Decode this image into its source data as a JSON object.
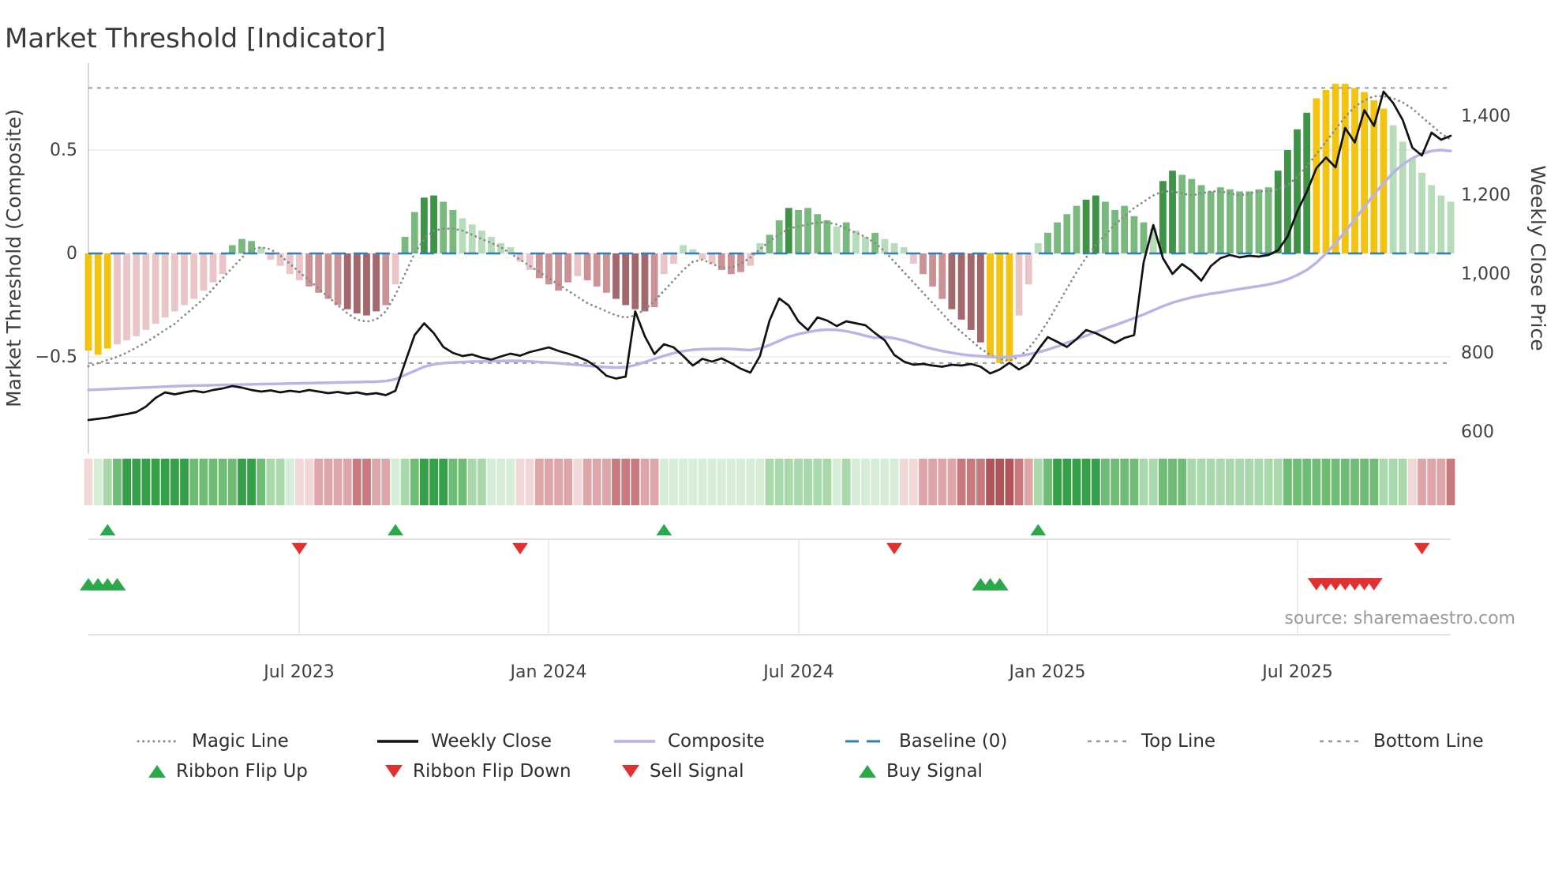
{
  "title": "Market Threshold [Indicator]",
  "source": "source: sharemaestro.com",
  "axes": {
    "left": {
      "label": "Market Threshold (Composite)",
      "ticks": [
        "0.5",
        "0",
        "−0.5"
      ],
      "range": [
        -0.97,
        0.92
      ]
    },
    "right": {
      "label": "Weekly Close Price",
      "ticks": [
        "1,400",
        "1,200",
        "1,000",
        "800",
        "600"
      ],
      "range": [
        544,
        1534
      ]
    },
    "x_ticks": [
      "Jul 2023",
      "Jan 2024",
      "Jul 2024",
      "Jan 2025",
      "Jul 2025"
    ],
    "x_tick_weeks": [
      22,
      48,
      74,
      100,
      126
    ]
  },
  "legend": {
    "row1": [
      {
        "id": "magic-line",
        "label": "Magic Line"
      },
      {
        "id": "weekly-close",
        "label": "Weekly Close"
      },
      {
        "id": "composite",
        "label": "Composite"
      },
      {
        "id": "baseline",
        "label": "Baseline (0)"
      },
      {
        "id": "top-line",
        "label": "Top Line"
      },
      {
        "id": "bottom-line",
        "label": "Bottom Line"
      }
    ],
    "row2": [
      {
        "id": "ribbon-flip-up",
        "label": "Ribbon Flip Up",
        "marker": "triangle-up-green"
      },
      {
        "id": "ribbon-flip-down",
        "label": "Ribbon Flip Down",
        "marker": "triangle-down-red"
      },
      {
        "id": "sell-signal",
        "label": "Sell Signal",
        "marker": "triangle-down-red"
      },
      {
        "id": "buy-signal",
        "label": "Buy Signal",
        "marker": "triangle-up-green"
      }
    ]
  },
  "colors": {
    "bar_yellow": "#f2c411",
    "bar_green_light": "#b7dcb9",
    "bar_green_mid": "#7ab97e",
    "bar_green_dark": "#3e9347",
    "bar_red_light": "#eac5c7",
    "bar_red_mid": "#cb9296",
    "bar_red_dark": "#a2686c",
    "ribbon_green": [
      "#d6edd7",
      "#a9d8ab",
      "#6fbd74",
      "#35a047"
    ],
    "ribbon_red": [
      "#f2d7d8",
      "#dfa6a9",
      "#c97a7e",
      "#b2555b"
    ],
    "weekly_close": "#111111",
    "composite_line": "#b9b3e6",
    "magic_line": "#8a8a8a",
    "baseline": "#2f7fb6",
    "guide": "#9a9a9a",
    "signal_green": "#2ba84a",
    "signal_red": "#e03131"
  },
  "chart_data": {
    "type": "mixed",
    "description": "Weekly composite-threshold histogram (left axis) with magic line, composite line and weekly close price (right axis), plus trend ribbon heatmap and signal markers.",
    "weeks": 143,
    "baseline": 0,
    "top_line": 0.8,
    "bottom_line": -0.53,
    "bar_values": [
      -0.47,
      -0.49,
      -0.46,
      -0.44,
      -0.42,
      -0.4,
      -0.37,
      -0.34,
      -0.31,
      -0.28,
      -0.25,
      -0.22,
      -0.18,
      -0.14,
      -0.1,
      0.04,
      0.07,
      0.06,
      0.03,
      -0.03,
      -0.06,
      -0.1,
      -0.13,
      -0.16,
      -0.19,
      -0.22,
      -0.25,
      -0.27,
      -0.29,
      -0.3,
      -0.28,
      -0.25,
      -0.15,
      0.08,
      0.2,
      0.27,
      0.28,
      0.25,
      0.21,
      0.17,
      0.14,
      0.11,
      0.08,
      0.05,
      0.03,
      -0.04,
      -0.08,
      -0.12,
      -0.15,
      -0.18,
      -0.14,
      -0.11,
      -0.13,
      -0.16,
      -0.19,
      -0.22,
      -0.25,
      -0.27,
      -0.28,
      -0.26,
      -0.1,
      -0.05,
      0.04,
      0.02,
      -0.03,
      -0.05,
      -0.08,
      -0.1,
      -0.09,
      -0.06,
      0.05,
      0.09,
      0.16,
      0.22,
      0.21,
      0.22,
      0.19,
      0.16,
      0.13,
      0.15,
      0.11,
      0.08,
      0.1,
      0.07,
      0.05,
      0.03,
      -0.05,
      -0.1,
      -0.16,
      -0.22,
      -0.27,
      -0.32,
      -0.37,
      -0.43,
      -0.5,
      -0.53,
      -0.52,
      -0.3,
      -0.15,
      0.05,
      0.1,
      0.15,
      0.19,
      0.23,
      0.26,
      0.28,
      0.25,
      0.21,
      0.23,
      0.18,
      0.15,
      0.12,
      0.35,
      0.4,
      0.38,
      0.36,
      0.33,
      0.3,
      0.32,
      0.31,
      0.3,
      0.3,
      0.31,
      0.32,
      0.4,
      0.5,
      0.6,
      0.68,
      0.75,
      0.79,
      0.82,
      0.82,
      0.8,
      0.78,
      0.74,
      0.7,
      0.62,
      0.54,
      0.46,
      0.39,
      0.33,
      0.28,
      0.25
    ],
    "bar_colors": [
      "y",
      "y",
      "y",
      "r1",
      "r1",
      "r1",
      "r1",
      "r1",
      "r1",
      "r1",
      "r1",
      "r1",
      "r1",
      "r1",
      "r1",
      "g2",
      "g2",
      "g2",
      "g1",
      "r1",
      "r1",
      "r1",
      "r1",
      "r2",
      "r2",
      "r2",
      "r2",
      "r3",
      "r3",
      "r3",
      "r3",
      "r2",
      "r1",
      "g2",
      "g2",
      "g3",
      "g3",
      "g2",
      "g2",
      "g1",
      "g1",
      "g1",
      "g1",
      "g1",
      "g1",
      "r1",
      "r1",
      "r2",
      "r2",
      "r2",
      "r2",
      "r1",
      "r2",
      "r2",
      "r2",
      "r3",
      "r3",
      "r3",
      "r3",
      "r2",
      "r1",
      "r1",
      "g1",
      "g1",
      "r1",
      "r1",
      "r2",
      "r2",
      "r2",
      "r1",
      "g1",
      "g2",
      "g2",
      "g3",
      "g2",
      "g2",
      "g2",
      "g2",
      "g1",
      "g2",
      "g1",
      "g1",
      "g2",
      "g1",
      "g1",
      "g1",
      "r1",
      "r2",
      "r2",
      "r2",
      "r3",
      "r3",
      "r3",
      "r3",
      "y",
      "y",
      "y",
      "r1",
      "r1",
      "g1",
      "g2",
      "g2",
      "g2",
      "g2",
      "g3",
      "g3",
      "g2",
      "g2",
      "g2",
      "g2",
      "g2",
      "g1",
      "g3",
      "g3",
      "g2",
      "g2",
      "g2",
      "g2",
      "g2",
      "g2",
      "g2",
      "g2",
      "g2",
      "g2",
      "g3",
      "g3",
      "g3",
      "g3",
      "y",
      "y",
      "y",
      "y",
      "y",
      "y",
      "y",
      "y",
      "g1",
      "g1",
      "g1",
      "g1",
      "g1",
      "g1",
      "g1"
    ],
    "weekly_close": [
      630,
      633,
      636,
      641,
      645,
      650,
      664,
      686,
      700,
      695,
      700,
      704,
      700,
      706,
      710,
      716,
      712,
      706,
      702,
      705,
      700,
      704,
      701,
      706,
      702,
      698,
      701,
      697,
      700,
      695,
      698,
      693,
      704,
      775,
      845,
      875,
      850,
      815,
      800,
      792,
      796,
      788,
      783,
      791,
      798,
      793,
      802,
      808,
      814,
      805,
      798,
      790,
      780,
      764,
      742,
      735,
      740,
      905,
      842,
      797,
      822,
      814,
      792,
      768,
      785,
      778,
      786,
      774,
      760,
      750,
      792,
      882,
      938,
      920,
      880,
      858,
      890,
      882,
      868,
      880,
      875,
      870,
      850,
      832,
      795,
      778,
      770,
      772,
      768,
      765,
      770,
      768,
      772,
      765,
      748,
      758,
      775,
      758,
      772,
      808,
      840,
      828,
      815,
      835,
      858,
      850,
      838,
      825,
      838,
      845,
      1030,
      1124,
      1040,
      1000,
      1025,
      1008,
      983,
      1020,
      1040,
      1048,
      1042,
      1046,
      1044,
      1048,
      1060,
      1095,
      1158,
      1208,
      1268,
      1295,
      1270,
      1370,
      1333,
      1415,
      1375,
      1462,
      1433,
      1390,
      1320,
      1300,
      1358,
      1340,
      1350
    ],
    "composite": [
      -0.66,
      -0.658,
      -0.656,
      -0.654,
      -0.652,
      -0.65,
      -0.648,
      -0.646,
      -0.644,
      -0.642,
      -0.64,
      -0.639,
      -0.638,
      -0.637,
      -0.636,
      -0.635,
      -0.634,
      -0.633,
      -0.632,
      -0.631,
      -0.63,
      -0.629,
      -0.628,
      -0.627,
      -0.626,
      -0.625,
      -0.624,
      -0.623,
      -0.622,
      -0.621,
      -0.62,
      -0.617,
      -0.608,
      -0.588,
      -0.568,
      -0.548,
      -0.536,
      -0.53,
      -0.527,
      -0.525,
      -0.523,
      -0.522,
      -0.521,
      -0.52,
      -0.519,
      -0.52,
      -0.522,
      -0.525,
      -0.528,
      -0.531,
      -0.535,
      -0.539,
      -0.543,
      -0.547,
      -0.55,
      -0.552,
      -0.55,
      -0.54,
      -0.525,
      -0.51,
      -0.495,
      -0.482,
      -0.472,
      -0.466,
      -0.463,
      -0.462,
      -0.461,
      -0.462,
      -0.465,
      -0.467,
      -0.46,
      -0.443,
      -0.423,
      -0.403,
      -0.39,
      -0.38,
      -0.372,
      -0.368,
      -0.37,
      -0.376,
      -0.386,
      -0.398,
      -0.408,
      -0.404,
      -0.41,
      -0.421,
      -0.435,
      -0.45,
      -0.462,
      -0.472,
      -0.48,
      -0.488,
      -0.493,
      -0.497,
      -0.5,
      -0.502,
      -0.5,
      -0.495,
      -0.488,
      -0.478,
      -0.465,
      -0.45,
      -0.432,
      -0.415,
      -0.398,
      -0.38,
      -0.363,
      -0.347,
      -0.33,
      -0.313,
      -0.295,
      -0.275,
      -0.255,
      -0.238,
      -0.225,
      -0.213,
      -0.203,
      -0.195,
      -0.188,
      -0.18,
      -0.172,
      -0.165,
      -0.158,
      -0.15,
      -0.14,
      -0.125,
      -0.105,
      -0.08,
      -0.045,
      0.0,
      0.05,
      0.105,
      0.165,
      0.225,
      0.285,
      0.34,
      0.39,
      0.43,
      0.46,
      0.482,
      0.495,
      0.5,
      0.495
    ],
    "magic": [
      -0.545,
      -0.53,
      -0.515,
      -0.5,
      -0.48,
      -0.455,
      -0.43,
      -0.4,
      -0.37,
      -0.34,
      -0.3,
      -0.26,
      -0.22,
      -0.17,
      -0.12,
      -0.07,
      -0.02,
      0.02,
      0.03,
      0.02,
      -0.01,
      -0.05,
      -0.09,
      -0.13,
      -0.17,
      -0.21,
      -0.25,
      -0.29,
      -0.32,
      -0.33,
      -0.32,
      -0.28,
      -0.2,
      -0.1,
      0.0,
      0.07,
      0.11,
      0.12,
      0.12,
      0.11,
      0.09,
      0.07,
      0.05,
      0.03,
      0.0,
      -0.03,
      -0.06,
      -0.09,
      -0.12,
      -0.15,
      -0.18,
      -0.21,
      -0.24,
      -0.26,
      -0.28,
      -0.3,
      -0.31,
      -0.3,
      -0.27,
      -0.23,
      -0.18,
      -0.13,
      -0.08,
      -0.04,
      -0.03,
      -0.05,
      -0.07,
      -0.07,
      -0.05,
      -0.02,
      0.02,
      0.06,
      0.09,
      0.12,
      0.13,
      0.14,
      0.15,
      0.15,
      0.14,
      0.12,
      0.1,
      0.08,
      0.05,
      0.01,
      -0.04,
      -0.09,
      -0.14,
      -0.19,
      -0.24,
      -0.29,
      -0.34,
      -0.38,
      -0.42,
      -0.46,
      -0.49,
      -0.51,
      -0.52,
      -0.5,
      -0.46,
      -0.4,
      -0.33,
      -0.25,
      -0.17,
      -0.09,
      -0.02,
      0.04,
      0.09,
      0.14,
      0.18,
      0.22,
      0.25,
      0.28,
      0.3,
      0.3,
      0.29,
      0.28,
      0.29,
      0.3,
      0.3,
      0.29,
      0.28,
      0.29,
      0.3,
      0.3,
      0.31,
      0.33,
      0.37,
      0.42,
      0.48,
      0.54,
      0.6,
      0.66,
      0.71,
      0.74,
      0.76,
      0.76,
      0.75,
      0.73,
      0.7,
      0.66,
      0.62,
      0.58,
      0.55
    ],
    "ribbon": [
      "r1",
      "g1",
      "g2",
      "g3",
      "g4",
      "g4",
      "g4",
      "g4",
      "g4",
      "g4",
      "g4",
      "g3",
      "g3",
      "g3",
      "g3",
      "g3",
      "g4",
      "g4",
      "g3",
      "g2",
      "g2",
      "g1",
      "r1",
      "r1",
      "r2",
      "r2",
      "r2",
      "r2",
      "r3",
      "r3",
      "r2",
      "r2",
      "g1",
      "g2",
      "g3",
      "g4",
      "g4",
      "g4",
      "g3",
      "g3",
      "g2",
      "g2",
      "g1",
      "g1",
      "g1",
      "r1",
      "r1",
      "r2",
      "r2",
      "r2",
      "r2",
      "r1",
      "r2",
      "r2",
      "r2",
      "r3",
      "r3",
      "r3",
      "r2",
      "r2",
      "g1",
      "g1",
      "g1",
      "g1",
      "g1",
      "g1",
      "g1",
      "g1",
      "g1",
      "g1",
      "g1",
      "g2",
      "g2",
      "g2",
      "g2",
      "g2",
      "g2",
      "g2",
      "g1",
      "g2",
      "g1",
      "g1",
      "g1",
      "g1",
      "g1",
      "r1",
      "r1",
      "r2",
      "r2",
      "r2",
      "r2",
      "r3",
      "r3",
      "r3",
      "r4",
      "r4",
      "r4",
      "r3",
      "r2",
      "g2",
      "g3",
      "g4",
      "g4",
      "g4",
      "g4",
      "g4",
      "g3",
      "g3",
      "g3",
      "g3",
      "g2",
      "g2",
      "g3",
      "g3",
      "g3",
      "g2",
      "g2",
      "g2",
      "g2",
      "g2",
      "g2",
      "g2",
      "g2",
      "g2",
      "g2",
      "g3",
      "g3",
      "g3",
      "g3",
      "g3",
      "g3",
      "g3",
      "g3",
      "g3",
      "g3",
      "g2",
      "g2",
      "g2",
      "r1",
      "r2",
      "r2",
      "r2",
      "r3"
    ],
    "signals": {
      "ribbon_flip_up": [
        2,
        32,
        60,
        99
      ],
      "ribbon_flip_down": [
        22,
        45,
        84,
        139
      ],
      "buy": [
        0,
        1,
        2,
        3,
        93,
        94,
        95
      ],
      "sell": [
        128,
        129,
        130,
        131,
        132,
        133,
        134
      ]
    }
  }
}
